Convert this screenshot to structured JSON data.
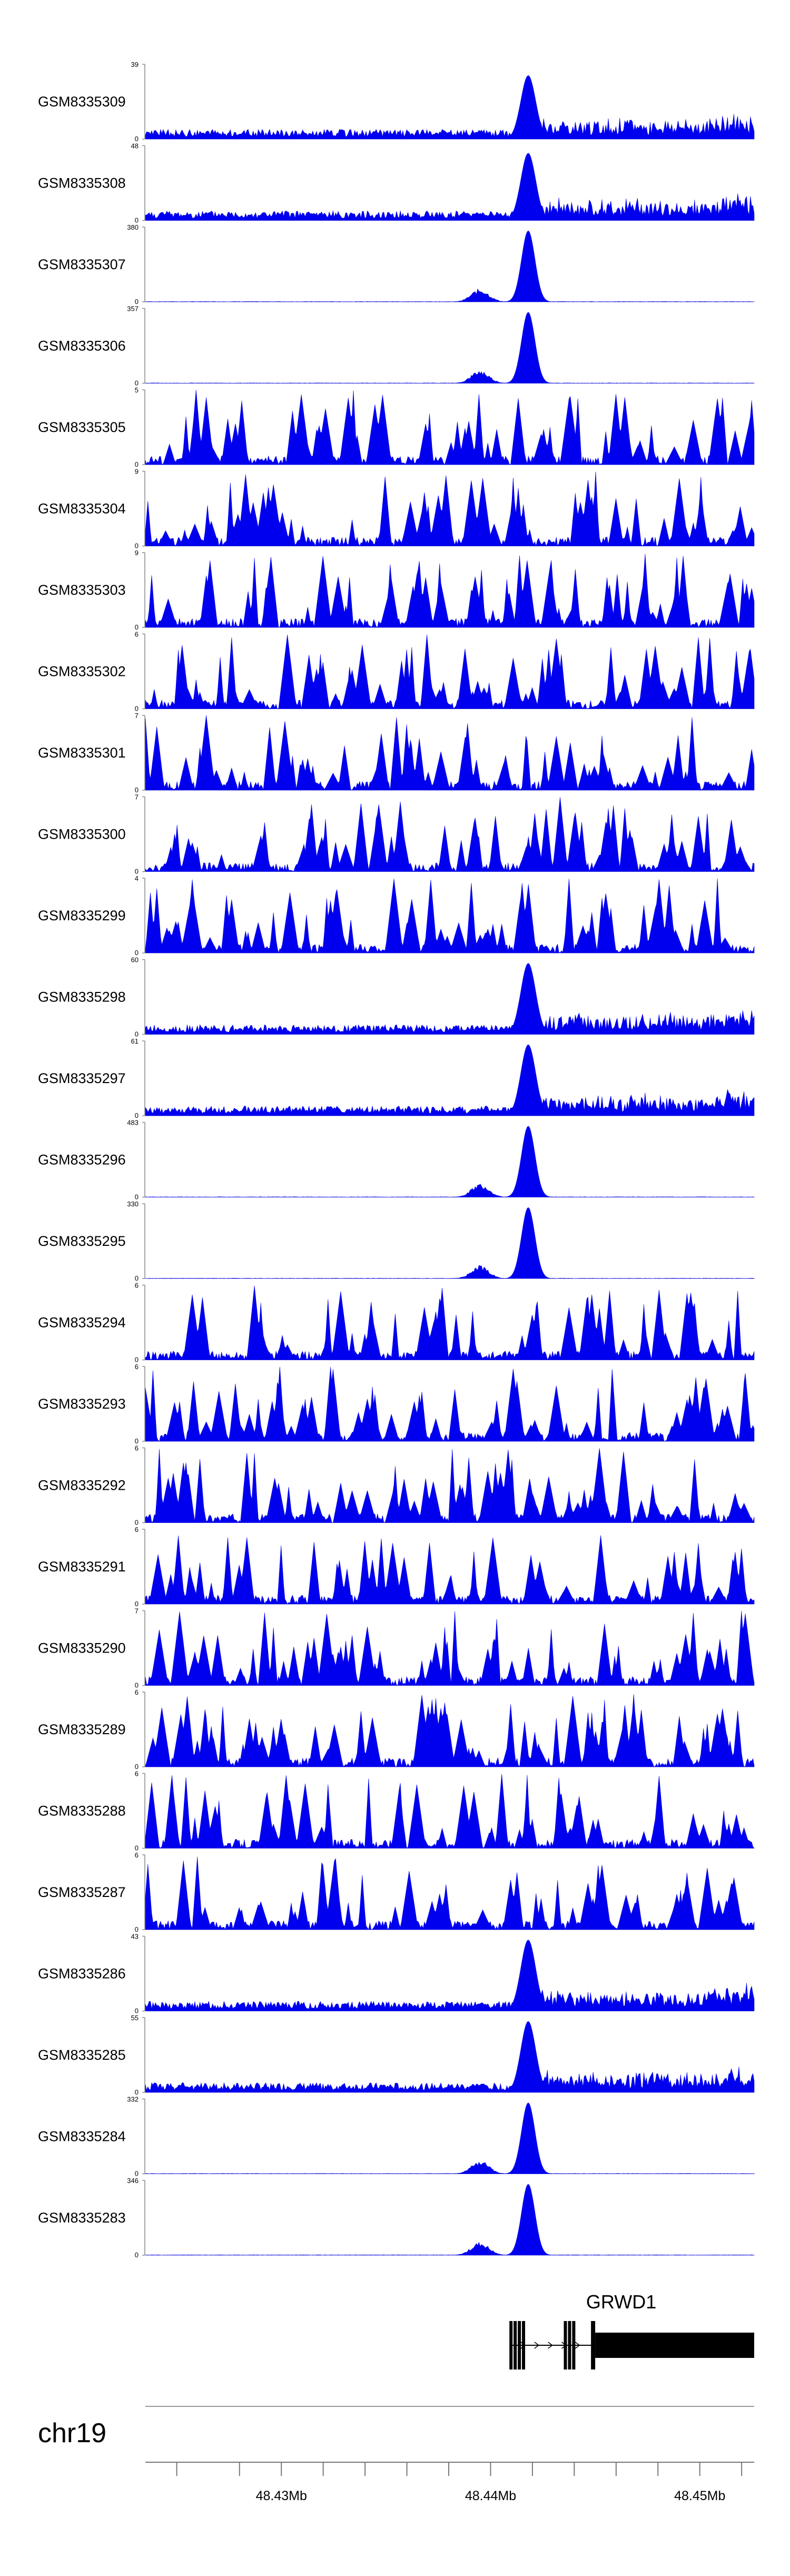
{
  "chart_data": {
    "type": "area",
    "title": "",
    "chromosome": "chr19",
    "x_range_mb": [
      48.4235,
      48.4526
    ],
    "x_ticks_mb": [
      48.425,
      48.428,
      48.43,
      48.432,
      48.434,
      48.436,
      48.438,
      48.44,
      48.442,
      48.444,
      48.446,
      48.448,
      48.45,
      48.452
    ],
    "x_tick_labels": [
      {
        "mb": 48.43,
        "label": "48.43Mb"
      },
      {
        "mb": 48.44,
        "label": "48.44Mb"
      },
      {
        "mb": 48.45,
        "label": "48.45Mb"
      }
    ],
    "color": "#0000ee",
    "peak_center_mb": 48.4418,
    "tracks": [
      {
        "name": "GSM8335309",
        "ymax": 39,
        "ymin": 0,
        "profile": "peak_bg",
        "peak": 0.85,
        "width": 0.0005,
        "seed": 9
      },
      {
        "name": "GSM8335308",
        "ymax": 48,
        "ymin": 0,
        "profile": "peak_bg",
        "peak": 0.9,
        "width": 0.0005,
        "seed": 8
      },
      {
        "name": "GSM8335307",
        "ymax": 380,
        "ymin": 0,
        "profile": "sharp",
        "peak": 0.95,
        "width": 0.00045,
        "seed": 7
      },
      {
        "name": "GSM8335306",
        "ymax": 357,
        "ymin": 0,
        "profile": "sharp",
        "peak": 0.95,
        "width": 0.00045,
        "seed": 6
      },
      {
        "name": "GSM8335305",
        "ymax": 5,
        "ymin": 0,
        "profile": "noise",
        "seed": 105
      },
      {
        "name": "GSM8335304",
        "ymax": 9,
        "ymin": 0,
        "profile": "noise",
        "seed": 104
      },
      {
        "name": "GSM8335303",
        "ymax": 9,
        "ymin": 0,
        "profile": "noise",
        "seed": 103
      },
      {
        "name": "GSM8335302",
        "ymax": 6,
        "ymin": 0,
        "profile": "noise",
        "seed": 102
      },
      {
        "name": "GSM8335301",
        "ymax": 7,
        "ymin": 0,
        "profile": "noise",
        "seed": 101
      },
      {
        "name": "GSM8335300",
        "ymax": 7,
        "ymin": 0,
        "profile": "noise",
        "seed": 100
      },
      {
        "name": "GSM8335299",
        "ymax": 4,
        "ymin": 0,
        "profile": "noise",
        "seed": 99
      },
      {
        "name": "GSM8335298",
        "ymax": 60,
        "ymin": 0,
        "profile": "peak_bg",
        "peak": 0.95,
        "width": 0.0005,
        "seed": 98
      },
      {
        "name": "GSM8335297",
        "ymax": 61,
        "ymin": 0,
        "profile": "peak_bg",
        "peak": 0.95,
        "width": 0.0005,
        "seed": 97
      },
      {
        "name": "GSM8335296",
        "ymax": 483,
        "ymin": 0,
        "profile": "sharp",
        "peak": 0.95,
        "width": 0.00045,
        "seed": 96
      },
      {
        "name": "GSM8335295",
        "ymax": 330,
        "ymin": 0,
        "profile": "sharp",
        "peak": 0.95,
        "width": 0.00045,
        "seed": 95
      },
      {
        "name": "GSM8335294",
        "ymax": 6,
        "ymin": 0,
        "profile": "noise",
        "seed": 94
      },
      {
        "name": "GSM8335293",
        "ymax": 6,
        "ymin": 0,
        "profile": "noise",
        "seed": 93
      },
      {
        "name": "GSM8335292",
        "ymax": 6,
        "ymin": 0,
        "profile": "noise",
        "seed": 92
      },
      {
        "name": "GSM8335291",
        "ymax": 6,
        "ymin": 0,
        "profile": "noise",
        "seed": 91
      },
      {
        "name": "GSM8335290",
        "ymax": 7,
        "ymin": 0,
        "profile": "noise",
        "seed": 90
      },
      {
        "name": "GSM8335289",
        "ymax": 6,
        "ymin": 0,
        "profile": "noise",
        "seed": 89
      },
      {
        "name": "GSM8335288",
        "ymax": 6,
        "ymin": 0,
        "profile": "noise",
        "seed": 88
      },
      {
        "name": "GSM8335287",
        "ymax": 6,
        "ymin": 0,
        "profile": "noise",
        "seed": 87
      },
      {
        "name": "GSM8335286",
        "ymax": 43,
        "ymin": 0,
        "profile": "peak_bg",
        "peak": 0.95,
        "width": 0.0005,
        "seed": 86
      },
      {
        "name": "GSM8335285",
        "ymax": 55,
        "ymin": 0,
        "profile": "peak_bg",
        "peak": 0.95,
        "width": 0.0005,
        "seed": 85
      },
      {
        "name": "GSM8335284",
        "ymax": 332,
        "ymin": 0,
        "profile": "sharp",
        "peak": 0.95,
        "width": 0.00045,
        "seed": 84
      },
      {
        "name": "GSM8335283",
        "ymax": 346,
        "ymin": 0,
        "profile": "sharp",
        "peak": 0.95,
        "width": 0.00045,
        "seed": 83
      }
    ],
    "gene": {
      "name": "GRWD1",
      "start_mb": 48.4409,
      "end_mb": 48.4526,
      "strand": "+",
      "exons_mb": [
        [
          48.4409,
          48.441
        ],
        [
          48.4411,
          48.4412
        ],
        [
          48.4413,
          48.4414
        ],
        [
          48.4415,
          48.4416
        ],
        [
          48.4435,
          48.4436
        ],
        [
          48.4437,
          48.4438
        ],
        [
          48.4439,
          48.444
        ],
        [
          48.4448,
          48.445
        ]
      ],
      "utr_mb": [
        48.445,
        48.4526
      ]
    }
  }
}
